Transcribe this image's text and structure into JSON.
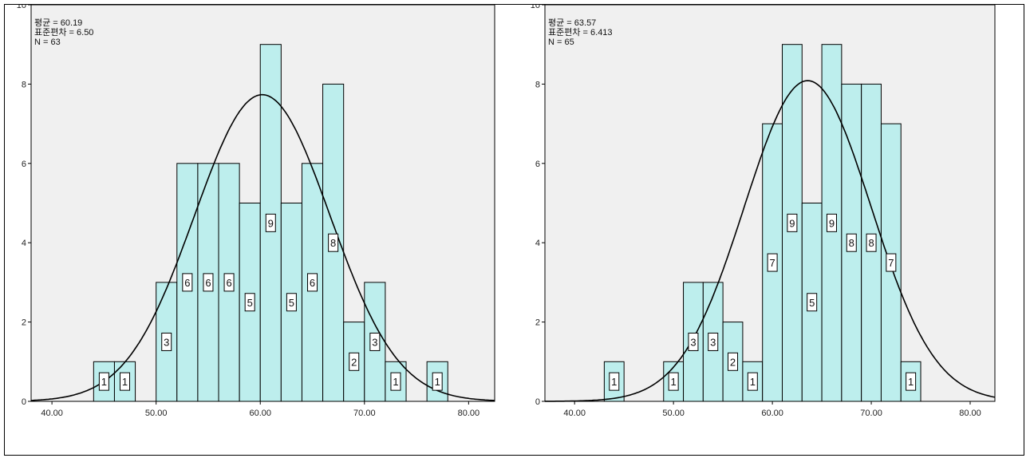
{
  "colors": {
    "plot_background": "#f0f0f0",
    "bar_fill": "#bdeeed",
    "bar_stroke": "#000000",
    "curve": "#000000"
  },
  "chart_data": [
    {
      "type": "bar",
      "subtype": "histogram",
      "stats": {
        "mean_label": "평균 = 60.19",
        "sd_label": "표준편차 = 6.50",
        "n_label": "N = 63"
      },
      "mean": 60.19,
      "sd": 6.5,
      "n": 63,
      "bin_width": 2,
      "xlim": [
        38,
        82.5
      ],
      "ylim": [
        0,
        10
      ],
      "x_ticks": [
        "40.00",
        "50.00",
        "60.00",
        "70.00",
        "80.00"
      ],
      "y_ticks": [
        "0",
        "2",
        "4",
        "6",
        "8",
        "10"
      ],
      "bins": [
        {
          "start": 44,
          "count": 1,
          "label": "1"
        },
        {
          "start": 46,
          "count": 1,
          "label": "1"
        },
        {
          "start": 50,
          "count": 3,
          "label": "3"
        },
        {
          "start": 52,
          "count": 6,
          "label": "6"
        },
        {
          "start": 54,
          "count": 6,
          "label": "6"
        },
        {
          "start": 56,
          "count": 6,
          "label": "6"
        },
        {
          "start": 58,
          "count": 5,
          "label": "5"
        },
        {
          "start": 60,
          "count": 9,
          "label": "9"
        },
        {
          "start": 62,
          "count": 5,
          "label": "5"
        },
        {
          "start": 64,
          "count": 6,
          "label": "6"
        },
        {
          "start": 66,
          "count": 8,
          "label": "8"
        },
        {
          "start": 68,
          "count": 2,
          "label": "2"
        },
        {
          "start": 70,
          "count": 3,
          "label": "3"
        },
        {
          "start": 72,
          "count": 1,
          "label": "1"
        },
        {
          "start": 76,
          "count": 1,
          "label": "1"
        }
      ],
      "normal_curve": true,
      "grid": false,
      "legend": "none"
    },
    {
      "type": "bar",
      "subtype": "histogram",
      "stats": {
        "mean_label": "평균 = 63.57",
        "sd_label": "표준편차 = 6.413",
        "n_label": "N = 65"
      },
      "mean": 63.57,
      "sd": 6.413,
      "n": 65,
      "bin_width": 2,
      "xlim": [
        37,
        82.5
      ],
      "ylim": [
        0,
        10
      ],
      "x_ticks": [
        "40.00",
        "50.00",
        "60.00",
        "70.00",
        "80.00"
      ],
      "y_ticks": [
        "0",
        "2",
        "4",
        "6",
        "8",
        "10"
      ],
      "bins": [
        {
          "start": 43,
          "count": 1,
          "label": "1"
        },
        {
          "start": 49,
          "count": 1,
          "label": "1"
        },
        {
          "start": 51,
          "count": 3,
          "label": "3"
        },
        {
          "start": 53,
          "count": 3,
          "label": "3"
        },
        {
          "start": 55,
          "count": 2,
          "label": "2"
        },
        {
          "start": 57,
          "count": 1,
          "label": "1"
        },
        {
          "start": 59,
          "count": 7,
          "label": "7"
        },
        {
          "start": 61,
          "count": 9,
          "label": "9"
        },
        {
          "start": 63,
          "count": 5,
          "label": "5"
        },
        {
          "start": 65,
          "count": 9,
          "label": "9"
        },
        {
          "start": 67,
          "count": 8,
          "label": "8"
        },
        {
          "start": 69,
          "count": 8,
          "label": "8"
        },
        {
          "start": 71,
          "count": 7,
          "label": "7"
        },
        {
          "start": 73,
          "count": 1,
          "label": "1"
        }
      ],
      "normal_curve": true,
      "grid": false,
      "legend": "none"
    }
  ]
}
